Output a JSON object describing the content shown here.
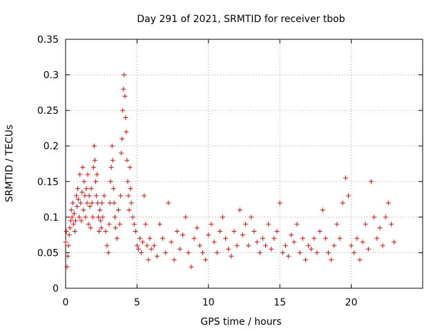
{
  "chart_data": {
    "type": "scatter",
    "title": "Day 291 of 2021, SRMTID for receiver tbob",
    "xlabel": "GPS time / hours",
    "ylabel": "SRMTID / TECUs",
    "xlim": [
      0,
      25
    ],
    "ylim": [
      0,
      0.35
    ],
    "xticks": [
      0,
      5,
      10,
      15,
      20
    ],
    "xtick_labels": [
      "0",
      "5",
      "10",
      "15",
      "20"
    ],
    "yticks": [
      0,
      0.05,
      0.1,
      0.15,
      0.2,
      0.25,
      0.3,
      0.35
    ],
    "ytick_labels": [
      "0",
      "0.05",
      "0.1",
      "0.15",
      "0.2",
      "0.25",
      "0.3",
      "0.35"
    ],
    "grid": true,
    "marker": "plus",
    "color": "#ff0000",
    "series": [
      {
        "name": "SRMTID",
        "points": [
          [
            0.0,
            0.065
          ],
          [
            0.05,
            0.08
          ],
          [
            0.1,
            0.03
          ],
          [
            0.15,
            0.045
          ],
          [
            0.2,
            0.06
          ],
          [
            0.25,
            0.075
          ],
          [
            0.3,
            0.085
          ],
          [
            0.35,
            0.095
          ],
          [
            0.4,
            0.11
          ],
          [
            0.45,
            0.1
          ],
          [
            0.5,
            0.12
          ],
          [
            0.55,
            0.09
          ],
          [
            0.6,
            0.105
          ],
          [
            0.65,
            0.08
          ],
          [
            0.7,
            0.095
          ],
          [
            0.75,
            0.13
          ],
          [
            0.8,
            0.115
          ],
          [
            0.85,
            0.14
          ],
          [
            0.9,
            0.125
          ],
          [
            0.95,
            0.1
          ],
          [
            1.0,
            0.16
          ],
          [
            1.05,
            0.12
          ],
          [
            1.1,
            0.095
          ],
          [
            1.15,
            0.135
          ],
          [
            1.2,
            0.17
          ],
          [
            1.25,
            0.11
          ],
          [
            1.3,
            0.15
          ],
          [
            1.35,
            0.13
          ],
          [
            1.4,
            0.1
          ],
          [
            1.45,
            0.14
          ],
          [
            1.5,
            0.12
          ],
          [
            1.55,
            0.16
          ],
          [
            1.6,
            0.09
          ],
          [
            1.65,
            0.13
          ],
          [
            1.7,
            0.115
          ],
          [
            1.75,
            0.085
          ],
          [
            1.8,
            0.14
          ],
          [
            1.85,
            0.12
          ],
          [
            1.9,
            0.1
          ],
          [
            1.95,
            0.17
          ],
          [
            2.0,
            0.2
          ],
          [
            2.05,
            0.18
          ],
          [
            2.1,
            0.15
          ],
          [
            2.15,
            0.13
          ],
          [
            2.2,
            0.16
          ],
          [
            2.25,
            0.12
          ],
          [
            2.3,
            0.1
          ],
          [
            2.35,
            0.08
          ],
          [
            2.4,
            0.11
          ],
          [
            2.45,
            0.095
          ],
          [
            2.5,
            0.085
          ],
          [
            2.55,
            0.12
          ],
          [
            2.6,
            0.1
          ],
          [
            2.7,
            0.13
          ],
          [
            2.8,
            0.08
          ],
          [
            2.9,
            0.06
          ],
          [
            3.0,
            0.05
          ],
          [
            3.05,
            0.09
          ],
          [
            3.1,
            0.12
          ],
          [
            3.15,
            0.15
          ],
          [
            3.2,
            0.17
          ],
          [
            3.25,
            0.2
          ],
          [
            3.3,
            0.18
          ],
          [
            3.35,
            0.14
          ],
          [
            3.4,
            0.12
          ],
          [
            3.45,
            0.1
          ],
          [
            3.5,
            0.085
          ],
          [
            3.6,
            0.07
          ],
          [
            3.7,
            0.11
          ],
          [
            3.8,
            0.09
          ],
          [
            3.85,
            0.13
          ],
          [
            3.9,
            0.19
          ],
          [
            3.95,
            0.21
          ],
          [
            4.0,
            0.25
          ],
          [
            4.05,
            0.28
          ],
          [
            4.1,
            0.3
          ],
          [
            4.15,
            0.27
          ],
          [
            4.2,
            0.24
          ],
          [
            4.25,
            0.22
          ],
          [
            4.3,
            0.18
          ],
          [
            4.35,
            0.15
          ],
          [
            4.4,
            0.13
          ],
          [
            4.45,
            0.11
          ],
          [
            4.5,
            0.17
          ],
          [
            4.55,
            0.14
          ],
          [
            4.6,
            0.12
          ],
          [
            4.7,
            0.1
          ],
          [
            4.8,
            0.09
          ],
          [
            4.9,
            0.08
          ],
          [
            5.0,
            0.06
          ],
          [
            5.1,
            0.055
          ],
          [
            5.2,
            0.07
          ],
          [
            5.3,
            0.05
          ],
          [
            5.4,
            0.065
          ],
          [
            5.5,
            0.13
          ],
          [
            5.6,
            0.09
          ],
          [
            5.7,
            0.06
          ],
          [
            5.8,
            0.04
          ],
          [
            5.9,
            0.07
          ],
          [
            6.0,
            0.055
          ],
          [
            6.2,
            0.06
          ],
          [
            6.4,
            0.045
          ],
          [
            6.6,
            0.09
          ],
          [
            6.8,
            0.07
          ],
          [
            7.0,
            0.05
          ],
          [
            7.2,
            0.12
          ],
          [
            7.4,
            0.065
          ],
          [
            7.6,
            0.04
          ],
          [
            7.8,
            0.08
          ],
          [
            8.0,
            0.055
          ],
          [
            8.2,
            0.075
          ],
          [
            8.4,
            0.1
          ],
          [
            8.6,
            0.05
          ],
          [
            8.8,
            0.03
          ],
          [
            9.0,
            0.07
          ],
          [
            9.2,
            0.085
          ],
          [
            9.4,
            0.06
          ],
          [
            9.6,
            0.05
          ],
          [
            9.8,
            0.04
          ],
          [
            10.0,
            0.075
          ],
          [
            10.2,
            0.09
          ],
          [
            10.4,
            0.065
          ],
          [
            10.6,
            0.05
          ],
          [
            10.8,
            0.08
          ],
          [
            11.0,
            0.1
          ],
          [
            11.2,
            0.07
          ],
          [
            11.4,
            0.055
          ],
          [
            11.6,
            0.045
          ],
          [
            11.8,
            0.08
          ],
          [
            12.0,
            0.06
          ],
          [
            12.2,
            0.11
          ],
          [
            12.4,
            0.075
          ],
          [
            12.6,
            0.09
          ],
          [
            12.8,
            0.06
          ],
          [
            13.0,
            0.1
          ],
          [
            13.2,
            0.08
          ],
          [
            13.4,
            0.065
          ],
          [
            13.6,
            0.05
          ],
          [
            13.8,
            0.07
          ],
          [
            14.0,
            0.06
          ],
          [
            14.2,
            0.09
          ],
          [
            14.4,
            0.055
          ],
          [
            14.6,
            0.07
          ],
          [
            14.8,
            0.08
          ],
          [
            15.0,
            0.12
          ],
          [
            15.2,
            0.05
          ],
          [
            15.4,
            0.06
          ],
          [
            15.6,
            0.045
          ],
          [
            15.8,
            0.075
          ],
          [
            16.0,
            0.065
          ],
          [
            16.2,
            0.09
          ],
          [
            16.4,
            0.05
          ],
          [
            16.6,
            0.07
          ],
          [
            16.8,
            0.04
          ],
          [
            17.0,
            0.06
          ],
          [
            17.2,
            0.055
          ],
          [
            17.4,
            0.07
          ],
          [
            17.6,
            0.05
          ],
          [
            17.8,
            0.08
          ],
          [
            18.0,
            0.11
          ],
          [
            18.2,
            0.07
          ],
          [
            18.4,
            0.05
          ],
          [
            18.6,
            0.04
          ],
          [
            18.8,
            0.06
          ],
          [
            19.0,
            0.09
          ],
          [
            19.2,
            0.07
          ],
          [
            19.4,
            0.12
          ],
          [
            19.6,
            0.155
          ],
          [
            19.8,
            0.13
          ],
          [
            20.0,
            0.06
          ],
          [
            20.2,
            0.05
          ],
          [
            20.4,
            0.07
          ],
          [
            20.6,
            0.04
          ],
          [
            20.8,
            0.065
          ],
          [
            21.0,
            0.09
          ],
          [
            21.2,
            0.055
          ],
          [
            21.4,
            0.15
          ],
          [
            21.6,
            0.1
          ],
          [
            21.8,
            0.07
          ],
          [
            22.0,
            0.085
          ],
          [
            22.2,
            0.06
          ],
          [
            22.4,
            0.1
          ],
          [
            22.6,
            0.12
          ],
          [
            22.8,
            0.09
          ],
          [
            23.0,
            0.065
          ]
        ]
      }
    ]
  }
}
